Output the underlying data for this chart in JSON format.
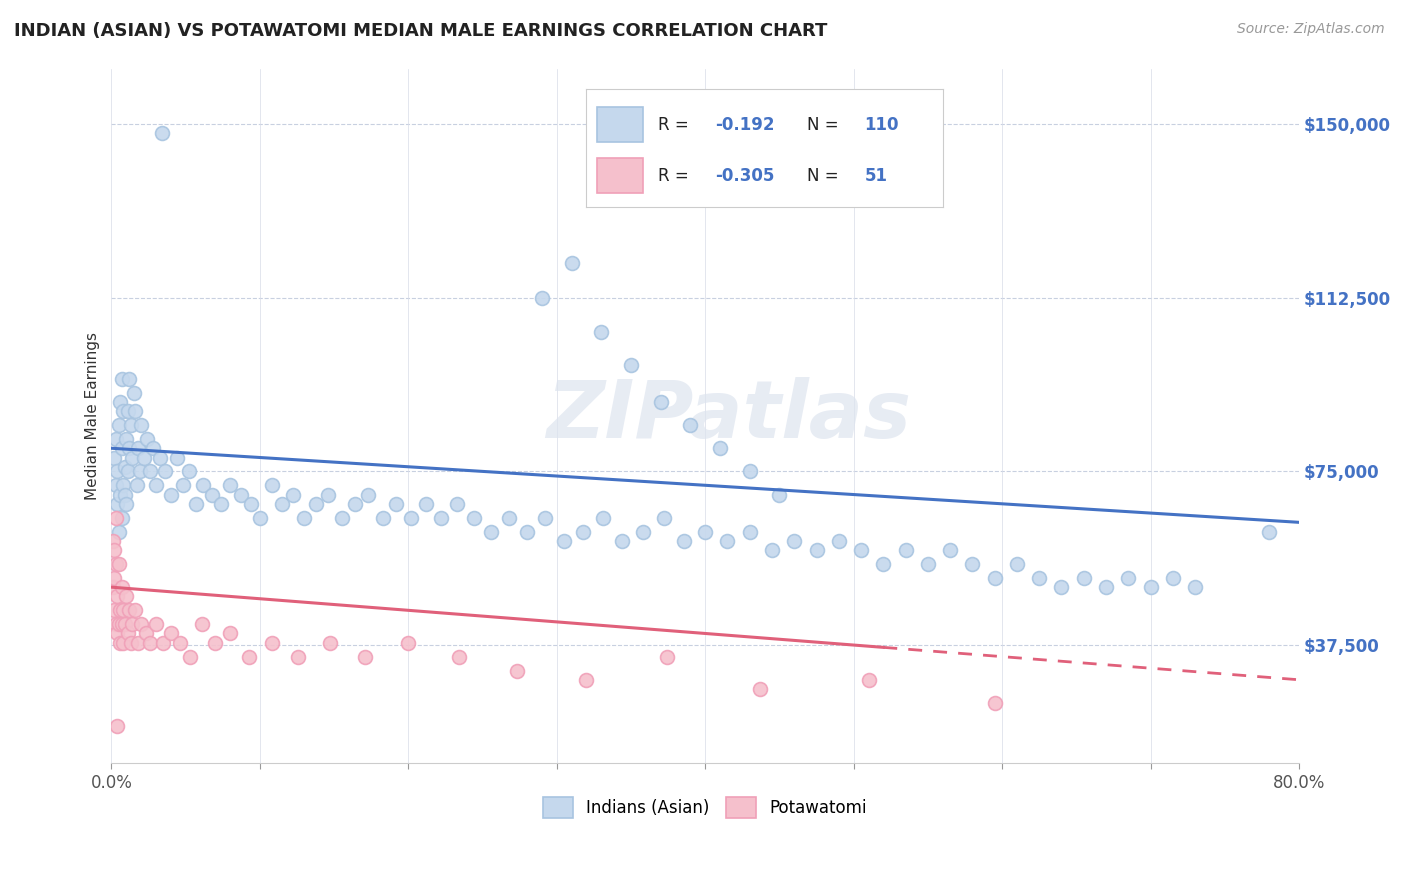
{
  "title": "INDIAN (ASIAN) VS POTAWATOMI MEDIAN MALE EARNINGS CORRELATION CHART",
  "source": "Source: ZipAtlas.com",
  "ylabel": "Median Male Earnings",
  "xlim": [
    0.0,
    0.8
  ],
  "ylim": [
    12000,
    162000
  ],
  "yticks": [
    37500,
    75000,
    112500,
    150000
  ],
  "ytick_labels": [
    "$37,500",
    "$75,000",
    "$112,500",
    "$150,000"
  ],
  "blue_color": "#a8c4e0",
  "blue_face": "#c5d8ed",
  "pink_color": "#f0a0b8",
  "pink_face": "#f5c0cc",
  "trend_blue": "#4472c4",
  "trend_pink": "#e0607a",
  "R_blue": -0.192,
  "N_blue": 110,
  "R_pink": -0.305,
  "N_pink": 51,
  "legend_label_blue": "Indians (Asian)",
  "legend_label_pink": "Potawatomi",
  "watermark": "ZIPatlas",
  "blue_intercept": 80000,
  "blue_slope": -20000,
  "pink_intercept": 50000,
  "pink_slope": -25000,
  "blue_scatter_x": [
    0.002,
    0.003,
    0.003,
    0.004,
    0.004,
    0.005,
    0.005,
    0.006,
    0.006,
    0.007,
    0.007,
    0.007,
    0.008,
    0.008,
    0.009,
    0.009,
    0.01,
    0.01,
    0.011,
    0.011,
    0.012,
    0.012,
    0.013,
    0.014,
    0.015,
    0.016,
    0.017,
    0.018,
    0.019,
    0.02,
    0.022,
    0.024,
    0.026,
    0.028,
    0.03,
    0.033,
    0.036,
    0.04,
    0.044,
    0.048,
    0.052,
    0.057,
    0.062,
    0.068,
    0.074,
    0.08,
    0.087,
    0.094,
    0.1,
    0.108,
    0.115,
    0.122,
    0.13,
    0.138,
    0.146,
    0.155,
    0.164,
    0.173,
    0.183,
    0.192,
    0.202,
    0.212,
    0.222,
    0.233,
    0.244,
    0.256,
    0.268,
    0.28,
    0.292,
    0.305,
    0.318,
    0.331,
    0.344,
    0.358,
    0.372,
    0.386,
    0.4,
    0.415,
    0.43,
    0.445,
    0.46,
    0.475,
    0.49,
    0.505,
    0.52,
    0.535,
    0.55,
    0.565,
    0.58,
    0.595,
    0.61,
    0.625,
    0.64,
    0.655,
    0.67,
    0.685,
    0.7,
    0.715,
    0.73,
    0.78,
    0.034,
    0.29,
    0.31,
    0.33,
    0.35,
    0.37,
    0.39,
    0.41,
    0.43,
    0.45
  ],
  "blue_scatter_y": [
    78000,
    72000,
    82000,
    68000,
    75000,
    62000,
    85000,
    70000,
    90000,
    65000,
    80000,
    95000,
    72000,
    88000,
    76000,
    70000,
    82000,
    68000,
    75000,
    88000,
    80000,
    95000,
    85000,
    78000,
    92000,
    88000,
    72000,
    80000,
    75000,
    85000,
    78000,
    82000,
    75000,
    80000,
    72000,
    78000,
    75000,
    70000,
    78000,
    72000,
    75000,
    68000,
    72000,
    70000,
    68000,
    72000,
    70000,
    68000,
    65000,
    72000,
    68000,
    70000,
    65000,
    68000,
    70000,
    65000,
    68000,
    70000,
    65000,
    68000,
    65000,
    68000,
    65000,
    68000,
    65000,
    62000,
    65000,
    62000,
    65000,
    60000,
    62000,
    65000,
    60000,
    62000,
    65000,
    60000,
    62000,
    60000,
    62000,
    58000,
    60000,
    58000,
    60000,
    58000,
    55000,
    58000,
    55000,
    58000,
    55000,
    52000,
    55000,
    52000,
    50000,
    52000,
    50000,
    52000,
    50000,
    52000,
    50000,
    62000,
    148000,
    112500,
    120000,
    105000,
    98000,
    90000,
    85000,
    80000,
    75000,
    70000
  ],
  "pink_scatter_x": [
    0.001,
    0.002,
    0.002,
    0.003,
    0.003,
    0.004,
    0.004,
    0.005,
    0.005,
    0.006,
    0.006,
    0.007,
    0.007,
    0.008,
    0.008,
    0.009,
    0.01,
    0.011,
    0.012,
    0.013,
    0.014,
    0.016,
    0.018,
    0.02,
    0.023,
    0.026,
    0.03,
    0.035,
    0.04,
    0.046,
    0.053,
    0.061,
    0.07,
    0.08,
    0.093,
    0.108,
    0.126,
    0.147,
    0.171,
    0.2,
    0.234,
    0.273,
    0.32,
    0.374,
    0.437,
    0.51,
    0.595,
    0.001,
    0.002,
    0.003,
    0.004
  ],
  "pink_scatter_y": [
    50000,
    45000,
    52000,
    42000,
    55000,
    40000,
    48000,
    42000,
    55000,
    45000,
    38000,
    42000,
    50000,
    38000,
    45000,
    42000,
    48000,
    40000,
    45000,
    38000,
    42000,
    45000,
    38000,
    42000,
    40000,
    38000,
    42000,
    38000,
    40000,
    38000,
    35000,
    42000,
    38000,
    40000,
    35000,
    38000,
    35000,
    38000,
    35000,
    38000,
    35000,
    32000,
    30000,
    35000,
    28000,
    30000,
    25000,
    60000,
    58000,
    65000,
    20000
  ]
}
